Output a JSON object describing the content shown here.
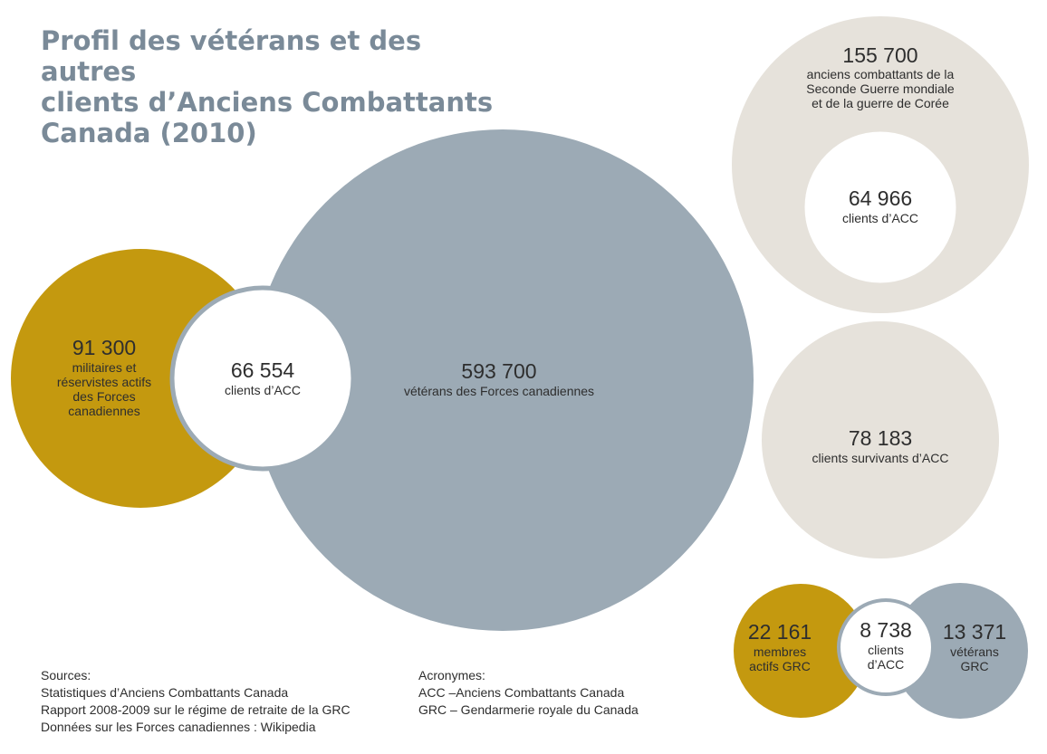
{
  "title": {
    "lines": [
      "Profil des vétérans et des autres",
      "clients d’Anciens Combattants",
      "Canada (2010)"
    ]
  },
  "colors": {
    "gold": "#c4990f",
    "slate": "#9caab5",
    "beige": "#e6e2db",
    "white": "#ffffff",
    "title": "#7a8a98"
  },
  "bubbles": {
    "cf_active": {
      "value": "91 300",
      "label": [
        "militaires et",
        "réservistes actifs",
        "des Forces",
        "canadiennes"
      ]
    },
    "cf_clients": {
      "value": "66 554",
      "label": [
        "clients d’ACC"
      ]
    },
    "cf_veterans": {
      "value": "593 700",
      "label": [
        "vétérans des Forces canadiennes"
      ]
    },
    "ww2_korea": {
      "value": "155 700",
      "label": [
        "anciens combattants de la",
        "Seconde Guerre mondiale",
        "et de la guerre de Corée"
      ]
    },
    "ww2_clients": {
      "value": "64 966",
      "label": [
        "clients d’ACC"
      ]
    },
    "survivors": {
      "value": "78 183",
      "label": [
        "clients survivants d’ACC"
      ]
    },
    "rcmp_active": {
      "value": "22 161",
      "label": [
        "membres",
        "actifs GRC"
      ]
    },
    "rcmp_clients": {
      "value": "8 738",
      "label": [
        "clients",
        "d’ACC"
      ]
    },
    "rcmp_veterans": {
      "value": "13 371",
      "label": [
        "vétérans",
        "GRC"
      ]
    }
  },
  "sources": {
    "heading": "Sources:",
    "items": [
      "Statistiques d’Anciens Combattants Canada",
      "Rapport 2008-2009 sur le régime de retraite de la GRC",
      "Données sur les Forces canadiennes : Wikipedia"
    ]
  },
  "acronyms": {
    "heading": "Acronymes:",
    "items": [
      "ACC –Anciens Combattants Canada",
      "GRC – Gendarmerie royale du Canada"
    ]
  }
}
